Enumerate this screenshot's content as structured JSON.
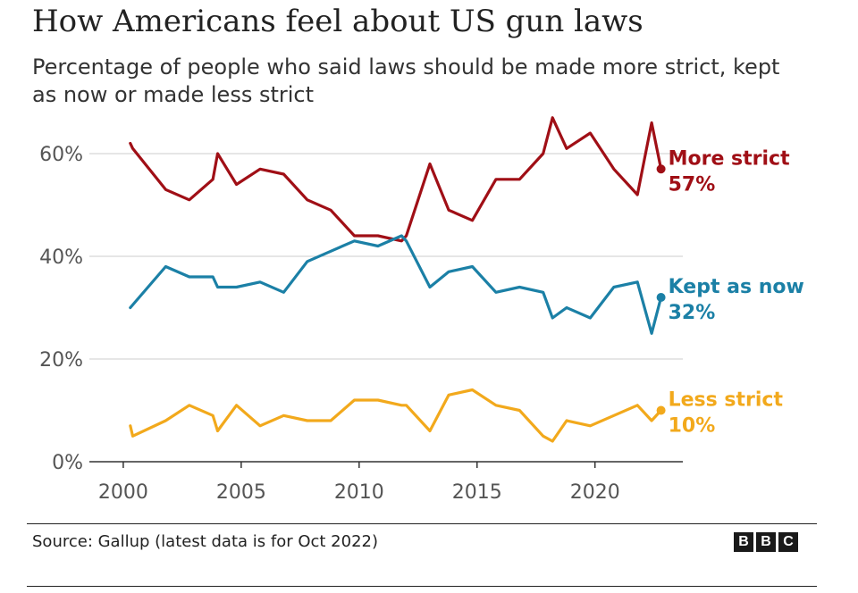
{
  "title": "How Americans feel about US gun laws",
  "subtitle": "Percentage of people who said laws should be made more strict, kept as now or made less strict",
  "source": "Source: Gallup (latest data is for Oct 2022)",
  "logo": [
    "B",
    "B",
    "C"
  ],
  "chart_data": {
    "type": "line",
    "title": "How Americans feel about US gun laws",
    "xlabel": "",
    "ylabel": "",
    "xlim": [
      1999.7,
      2023.8
    ],
    "ylim": [
      0,
      60
    ],
    "x_ticks": [
      2000,
      2005,
      2010,
      2015,
      2020
    ],
    "x_tick_labels": [
      "2000",
      "2005",
      "2010",
      "2015",
      "2020"
    ],
    "y_ticks": [
      0,
      20,
      40,
      60
    ],
    "y_tick_labels": [
      "0%",
      "20%",
      "40%",
      "60%"
    ],
    "grid": true,
    "series": [
      {
        "name": "More strict",
        "color": "#a00f16",
        "end_label": "More strict",
        "end_value": "57%",
        "x": [
          2000.3,
          2000.4,
          2001.8,
          2002.8,
          2003.8,
          2004.0,
          2004.8,
          2005.8,
          2006.8,
          2007.8,
          2008.8,
          2009.8,
          2010.8,
          2011.8,
          2012.0,
          2013.0,
          2013.8,
          2014.8,
          2015.8,
          2016.8,
          2017.8,
          2018.2,
          2018.8,
          2019.8,
          2020.8,
          2021.8,
          2022.4,
          2022.8
        ],
        "y": [
          62,
          61,
          53,
          51,
          55,
          60,
          54,
          57,
          56,
          51,
          49,
          44,
          44,
          43,
          44,
          58,
          49,
          47,
          55,
          55,
          60,
          67,
          61,
          64,
          57,
          52,
          66,
          57
        ]
      },
      {
        "name": "Kept as now",
        "color": "#1b80a6",
        "end_label": "Kept as now",
        "end_value": "32%",
        "x": [
          2000.3,
          2001.8,
          2002.8,
          2003.8,
          2004.0,
          2004.8,
          2005.8,
          2006.8,
          2007.8,
          2008.8,
          2009.8,
          2010.8,
          2011.8,
          2012.0,
          2013.0,
          2013.8,
          2014.8,
          2015.8,
          2016.8,
          2017.8,
          2018.2,
          2018.8,
          2019.8,
          2020.8,
          2021.8,
          2022.4,
          2022.8
        ],
        "y": [
          30,
          38,
          36,
          36,
          34,
          34,
          35,
          33,
          39,
          41,
          43,
          42,
          44,
          43,
          34,
          37,
          38,
          33,
          34,
          33,
          28,
          30,
          28,
          34,
          35,
          25,
          32
        ]
      },
      {
        "name": "Less strict",
        "color": "#f2a91c",
        "end_label": "Less strict",
        "end_value": "10%",
        "x": [
          2000.3,
          2000.4,
          2001.8,
          2002.8,
          2003.8,
          2004.0,
          2004.8,
          2005.8,
          2006.8,
          2007.8,
          2008.8,
          2009.8,
          2010.8,
          2011.8,
          2012.0,
          2013.0,
          2013.8,
          2014.8,
          2015.8,
          2016.8,
          2017.8,
          2018.2,
          2018.8,
          2019.8,
          2020.8,
          2021.8,
          2022.4,
          2022.8
        ],
        "y": [
          7,
          5,
          8,
          11,
          9,
          6,
          11,
          7,
          9,
          8,
          8,
          12,
          12,
          11,
          11,
          6,
          13,
          14,
          11,
          10,
          5,
          4,
          8,
          7,
          9,
          11,
          8,
          10
        ]
      }
    ]
  }
}
